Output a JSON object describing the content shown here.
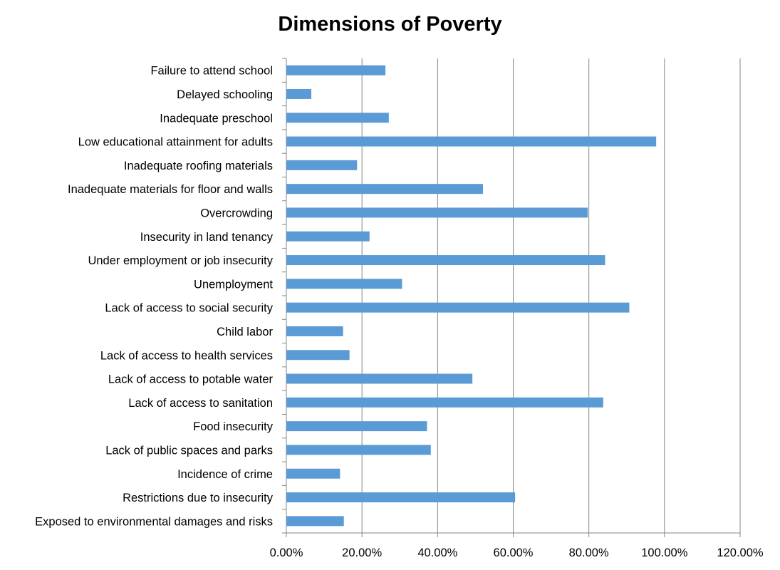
{
  "chart_data": {
    "type": "bar",
    "orientation": "horizontal",
    "title": "Dimensions of Poverty",
    "xlabel": "",
    "ylabel": "",
    "xlim": [
      0,
      1.2
    ],
    "x_ticks": [
      0,
      0.2,
      0.4,
      0.6,
      0.8,
      1.0,
      1.2
    ],
    "x_tick_labels": [
      "0.00%",
      "20.00%",
      "40.00%",
      "60.00%",
      "80.00%",
      "100.00%",
      "120.00%"
    ],
    "grid": "vertical major gridlines",
    "legend": "none",
    "bar_color": "#5B9BD5",
    "gridline_color": "#868686",
    "categories": [
      "Failure to attend school",
      "Delayed schooling",
      "Inadequate preschool",
      "Low educational attainment for adults",
      "Inadequate roofing materials",
      "Inadequate materials for floor and walls",
      "Overcrowding",
      "Insecurity in land tenancy",
      "Under employment or job insecurity",
      "Unemployment",
      "Lack of access to social security",
      "Child labor",
      "Lack of access to health services",
      "Lack of access to potable water",
      "Lack of access to sanitation",
      "Food insecurity",
      "Lack of public spaces and parks",
      "Incidence of crime",
      "Restrictions due to insecurity",
      "Exposed to environmental damages and risks"
    ],
    "values": [
      0.262,
      0.066,
      0.271,
      0.978,
      0.187,
      0.52,
      0.797,
      0.22,
      0.843,
      0.306,
      0.907,
      0.15,
      0.167,
      0.492,
      0.838,
      0.372,
      0.382,
      0.142,
      0.605,
      0.152
    ]
  }
}
